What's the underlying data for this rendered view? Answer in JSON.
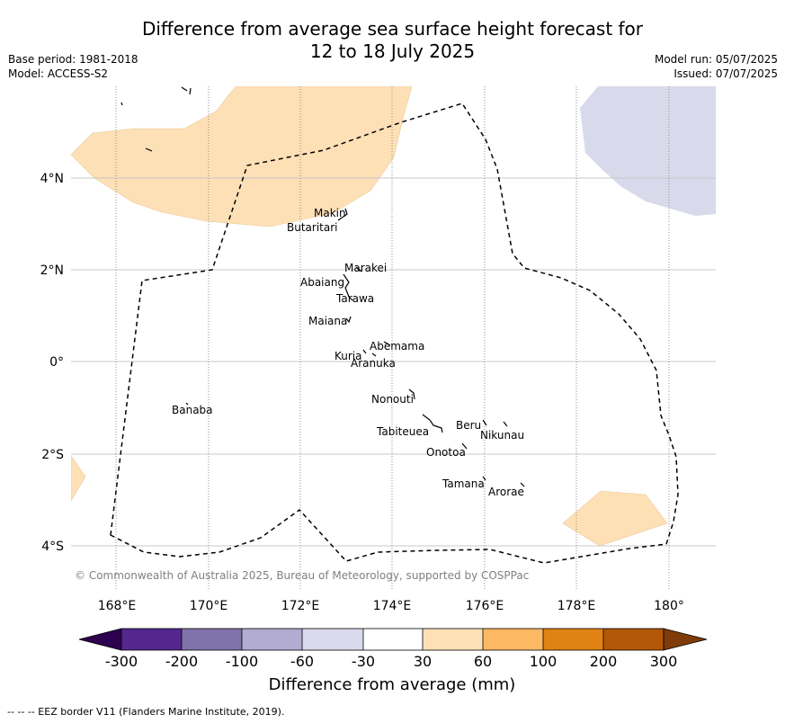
{
  "title": {
    "line1": "Difference from average sea surface height forecast for",
    "line2": "12 to 18 July 2025"
  },
  "meta_left": {
    "base_period": "Base period: 1981-2018",
    "model": "Model: ACCESS-S2"
  },
  "meta_right": {
    "model_run": "Model run: 05/07/2025",
    "issued": "Issued: 07/07/2025"
  },
  "map": {
    "lon_labels": [
      "168°E",
      "170°E",
      "172°E",
      "174°E",
      "176°E",
      "178°E",
      "180°"
    ],
    "lat_labels": [
      "4°N",
      "2°N",
      "0°",
      "2°S",
      "4°S"
    ],
    "islands": [
      {
        "name": "Makin"
      },
      {
        "name": "Butaritari"
      },
      {
        "name": "Marakei"
      },
      {
        "name": "Abaiang"
      },
      {
        "name": "Tarawa"
      },
      {
        "name": "Maiana"
      },
      {
        "name": "Abemama"
      },
      {
        "name": "Kuria"
      },
      {
        "name": "Aranuka"
      },
      {
        "name": "Banaba"
      },
      {
        "name": "Nonouti"
      },
      {
        "name": "Beru"
      },
      {
        "name": "Tabiteuea"
      },
      {
        "name": "Nikunau"
      },
      {
        "name": "Onotoa"
      },
      {
        "name": "Tamana"
      },
      {
        "name": "Arorae"
      }
    ],
    "copyright": "© Commonwealth of Australia 2025, Bureau of Meteorology, supported by COSPPac"
  },
  "colorbar": {
    "ticks": [
      "-300",
      "-200",
      "-100",
      "-60",
      "-30",
      "30",
      "60",
      "100",
      "200",
      "300"
    ],
    "label": "Difference from average (mm)",
    "colors": {
      "below_min": "#2d0050",
      "n300_n200": "#54278f",
      "n200_n100": "#8073ac",
      "n100_n60": "#b2abd2",
      "n60_n30": "#d8daeb",
      "n30_30": "#ffffff",
      "p30_60": "#fee0b6",
      "p60_100": "#fdb863",
      "p100_200": "#e08214",
      "p200_300": "#b35806",
      "above_max": "#7f3b08"
    }
  },
  "footnote": "--  --  -- EEZ border V11 (Flanders Marine Institute, 2019)."
}
